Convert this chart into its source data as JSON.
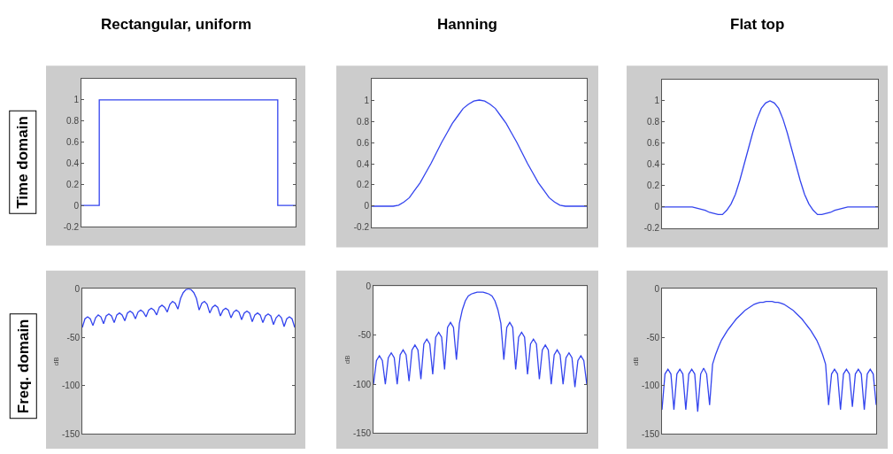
{
  "chart_data": [
    {
      "type": "step",
      "title": "Rectangular, uniform",
      "annotations": [
        "Time domain"
      ],
      "color": "#3344ee",
      "tick_labels": "y",
      "ylim": [
        -0.2,
        1.2
      ],
      "yticks": [
        -0.2,
        0,
        0.2,
        0.4,
        0.6,
        0.8,
        1
      ],
      "categories": [
        null,
        null,
        null,
        null,
        null,
        null,
        null,
        null,
        null,
        null,
        null,
        null,
        null
      ],
      "values": [
        0,
        1,
        1,
        1,
        1,
        1,
        1,
        1,
        1,
        1,
        1,
        0,
        0
      ]
    },
    {
      "type": "line",
      "title": "Hanning",
      "color": "#3344ee",
      "tick_labels": "y",
      "ylim": [
        -0.2,
        1.2
      ],
      "yticks": [
        -0.2,
        0,
        0.2,
        0.4,
        0.6,
        0.8,
        1
      ],
      "categories": [
        null,
        null,
        null,
        null,
        null,
        null,
        null,
        null,
        null,
        null,
        null,
        null,
        null,
        null,
        null,
        null,
        null,
        null,
        null,
        null,
        null,
        null,
        null,
        null,
        null,
        null,
        null,
        null,
        null,
        null,
        null,
        null,
        null,
        null,
        null,
        null,
        null,
        null,
        null,
        null,
        null
      ],
      "values": [
        0,
        0,
        0,
        0,
        0,
        0.01,
        0.04,
        0.08,
        0.15,
        0.22,
        0.31,
        0.4,
        0.5,
        0.6,
        0.69,
        0.78,
        0.85,
        0.92,
        0.96,
        0.99,
        1,
        0.99,
        0.96,
        0.92,
        0.85,
        0.78,
        0.69,
        0.6,
        0.5,
        0.4,
        0.31,
        0.22,
        0.15,
        0.08,
        0.04,
        0.01,
        0,
        0,
        0,
        0,
        0
      ]
    },
    {
      "type": "line",
      "title": "Flat top",
      "color": "#3344ee",
      "tick_labels": "y",
      "ylim": [
        -0.2,
        1.2
      ],
      "yticks": [
        -0.2,
        0,
        0.2,
        0.4,
        0.6,
        0.8,
        1
      ],
      "categories": [
        null,
        null,
        null,
        null,
        null,
        null,
        null,
        null,
        null,
        null,
        null,
        null,
        null,
        null,
        null,
        null,
        null,
        null,
        null,
        null,
        null,
        null,
        null,
        null,
        null,
        null,
        null,
        null,
        null,
        null,
        null,
        null,
        null,
        null,
        null,
        null,
        null,
        null,
        null,
        null,
        null,
        null,
        null,
        null,
        null,
        null,
        null,
        null,
        null,
        null,
        null
      ],
      "values": [
        0,
        0,
        0,
        0,
        0,
        0,
        0,
        0,
        -0.01,
        -0.02,
        -0.03,
        -0.05,
        -0.06,
        -0.07,
        -0.07,
        -0.03,
        0.03,
        0.12,
        0.25,
        0.4,
        0.55,
        0.7,
        0.83,
        0.93,
        0.98,
        1,
        0.98,
        0.93,
        0.83,
        0.7,
        0.55,
        0.4,
        0.25,
        0.12,
        0.03,
        -0.03,
        -0.07,
        -0.07,
        -0.06,
        -0.05,
        -0.03,
        -0.02,
        -0.01,
        0,
        0,
        0,
        0,
        0,
        0,
        0,
        0
      ]
    },
    {
      "type": "line",
      "ylabel": "dB",
      "annotations": [
        "Freq. domain"
      ],
      "color": "#3344ee",
      "tick_labels": "y",
      "ylim": [
        -150,
        0
      ],
      "yticks": [
        -150,
        -100,
        -50,
        0
      ],
      "categories": [
        null,
        null,
        null,
        null,
        null,
        null,
        null,
        null,
        null,
        null,
        null,
        null,
        null,
        null,
        null,
        null,
        null,
        null,
        null,
        null,
        null,
        null,
        null,
        null,
        null,
        null,
        null,
        null,
        null,
        null,
        null,
        null,
        null,
        null,
        null,
        null,
        null,
        null,
        null,
        null,
        null,
        null,
        null,
        null,
        null,
        null,
        null,
        null,
        null,
        null,
        null,
        null,
        null,
        null,
        null,
        null,
        null,
        null,
        null,
        null,
        null,
        null,
        null,
        null,
        null,
        null,
        null,
        null,
        null,
        null,
        null,
        null,
        null,
        null,
        null,
        null,
        null,
        null,
        null,
        null,
        null
      ],
      "values": [
        -40,
        -31,
        -29,
        -31,
        -38,
        -30,
        -27,
        -29,
        -36,
        -28,
        -26,
        -28,
        -35,
        -27,
        -25,
        -27,
        -33,
        -25,
        -23,
        -25,
        -31,
        -24,
        -22,
        -24,
        -29,
        -22,
        -20,
        -22,
        -27,
        -19,
        -17,
        -19,
        -24,
        -16,
        -13,
        -15,
        -21,
        -10,
        -4,
        -1,
        0,
        -1,
        -4,
        -10,
        -22,
        -15,
        -13,
        -16,
        -25,
        -19,
        -17,
        -19,
        -28,
        -22,
        -20,
        -22,
        -30,
        -24,
        -22,
        -24,
        -32,
        -25,
        -23,
        -25,
        -34,
        -27,
        -25,
        -27,
        -35,
        -28,
        -26,
        -28,
        -37,
        -30,
        -27,
        -30,
        -39,
        -31,
        -29,
        -31,
        -40
      ]
    },
    {
      "type": "line",
      "ylabel": "dB",
      "color": "#3344ee",
      "tick_labels": "y",
      "ylim": [
        -150,
        0
      ],
      "yticks": [
        -150,
        -100,
        -50,
        0
      ],
      "categories": [
        null,
        null,
        null,
        null,
        null,
        null,
        null,
        null,
        null,
        null,
        null,
        null,
        null,
        null,
        null,
        null,
        null,
        null,
        null,
        null,
        null,
        null,
        null,
        null,
        null,
        null,
        null,
        null,
        null,
        null,
        null,
        null,
        null,
        null,
        null,
        null,
        null,
        null,
        null,
        null,
        null,
        null,
        null,
        null,
        null,
        null,
        null,
        null,
        null,
        null,
        null,
        null,
        null,
        null,
        null,
        null,
        null,
        null,
        null,
        null,
        null,
        null,
        null,
        null,
        null,
        null,
        null,
        null,
        null,
        null,
        null,
        null,
        null
      ],
      "values": [
        -100,
        -76,
        -71,
        -76,
        -100,
        -73,
        -68,
        -73,
        -100,
        -70,
        -65,
        -70,
        -97,
        -65,
        -60,
        -65,
        -95,
        -59,
        -54,
        -59,
        -90,
        -52,
        -47,
        -52,
        -85,
        -42,
        -37,
        -42,
        -75,
        -38,
        -24,
        -15,
        -10,
        -8,
        -7,
        -6,
        -6,
        -6,
        -7,
        -8,
        -10,
        -15,
        -24,
        -38,
        -75,
        -42,
        -37,
        -42,
        -85,
        -52,
        -47,
        -52,
        -90,
        -59,
        -54,
        -59,
        -95,
        -65,
        -60,
        -65,
        -100,
        -70,
        -65,
        -70,
        -100,
        -73,
        -68,
        -73,
        -103,
        -76,
        -71,
        -76,
        -100
      ]
    },
    {
      "type": "line",
      "ylabel": "dB",
      "color": "#3344ee",
      "tick_labels": "y",
      "ylim": [
        -150,
        0
      ],
      "yticks": [
        -150,
        -100,
        -50,
        0
      ],
      "categories": [
        null,
        null,
        null,
        null,
        null,
        null,
        null,
        null,
        null,
        null,
        null,
        null,
        null,
        null,
        null,
        null,
        null,
        null,
        null,
        null,
        null,
        null,
        null,
        null,
        null,
        null,
        null,
        null,
        null,
        null,
        null,
        null,
        null,
        null,
        null,
        null,
        null,
        null,
        null,
        null,
        null,
        null,
        null,
        null,
        null,
        null,
        null,
        null,
        null,
        null,
        null,
        null,
        null,
        null,
        null,
        null,
        null,
        null,
        null,
        null,
        null,
        null,
        null,
        null,
        null,
        null,
        null,
        null,
        null,
        null,
        null,
        null,
        null
      ],
      "values": [
        -125,
        -88,
        -83,
        -88,
        -125,
        -88,
        -83,
        -88,
        -125,
        -88,
        -83,
        -88,
        -127,
        -88,
        -82,
        -88,
        -120,
        -78,
        -68,
        -60,
        -53,
        -48,
        -43,
        -39,
        -35,
        -31,
        -28,
        -25,
        -22,
        -20,
        -18,
        -16,
        -15,
        -14,
        -14,
        -13,
        -13,
        -13,
        -14,
        -14,
        -15,
        -16,
        -18,
        -20,
        -22,
        -25,
        -28,
        -31,
        -35,
        -39,
        -43,
        -48,
        -53,
        -60,
        -68,
        -78,
        -120,
        -88,
        -83,
        -88,
        -125,
        -88,
        -83,
        -88,
        -122,
        -88,
        -83,
        -88,
        -125,
        -88,
        -83,
        -88,
        -120
      ]
    }
  ]
}
